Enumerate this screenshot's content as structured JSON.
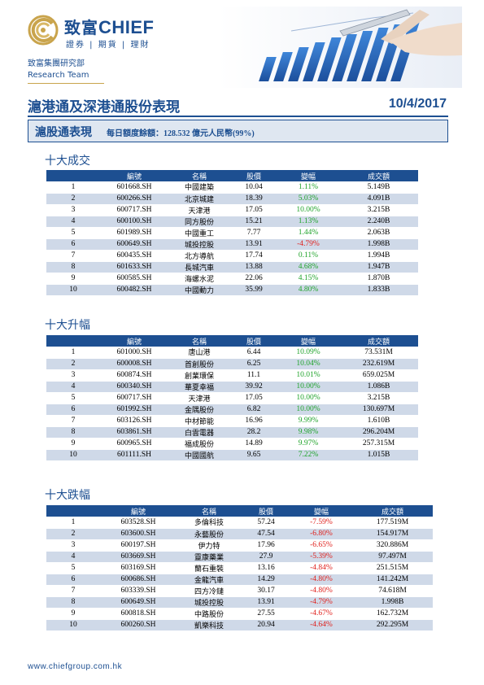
{
  "brand": {
    "cn": "致富",
    "en": "CHIEF",
    "tagline": "證券 | 期貨 | 理財",
    "department_cn": "致富集團研究部",
    "department_en": "Research Team"
  },
  "report": {
    "title": "滬港通及深港通股份表現",
    "date": "10/4/2017"
  },
  "quota": {
    "label": "滬股通表現",
    "text": "每日額度餘額：128.532 億元人民幣(99%)"
  },
  "columns": [
    "",
    "編號",
    "名稱",
    "股價",
    "變幅",
    "成交額"
  ],
  "colors": {
    "brand": "#1d4f91",
    "gold": "#c9a44c",
    "up": "#1fa32a",
    "down": "#e0201c",
    "stripe": "#cfd9e8"
  },
  "sections": [
    {
      "heading": "十大成交",
      "rows": [
        {
          "rank": "1",
          "code": "601668.SH",
          "name": "中國建築",
          "price": "10.04",
          "change": "1.11%",
          "turnover": "5.149B"
        },
        {
          "rank": "2",
          "code": "600266.SH",
          "name": "北京城建",
          "price": "18.39",
          "change": "5.03%",
          "turnover": "4.091B"
        },
        {
          "rank": "3",
          "code": "600717.SH",
          "name": "天津港",
          "price": "17.05",
          "change": "10.00%",
          "turnover": "3.215B"
        },
        {
          "rank": "4",
          "code": "600100.SH",
          "name": "同方股份",
          "price": "15.21",
          "change": "1.13%",
          "turnover": "2.240B"
        },
        {
          "rank": "5",
          "code": "601989.SH",
          "name": "中國重工",
          "price": "7.77",
          "change": "1.44%",
          "turnover": "2.063B"
        },
        {
          "rank": "6",
          "code": "600649.SH",
          "name": "城投控股",
          "price": "13.91",
          "change": "-4.79%",
          "turnover": "1.998B"
        },
        {
          "rank": "7",
          "code": "600435.SH",
          "name": "北方導航",
          "price": "17.74",
          "change": "0.11%",
          "turnover": "1.994B"
        },
        {
          "rank": "8",
          "code": "601633.SH",
          "name": "長城汽車",
          "price": "13.88",
          "change": "4.68%",
          "turnover": "1.947B"
        },
        {
          "rank": "9",
          "code": "600585.SH",
          "name": "海螺水泥",
          "price": "22.06",
          "change": "4.15%",
          "turnover": "1.870B"
        },
        {
          "rank": "10",
          "code": "600482.SH",
          "name": "中國動力",
          "price": "35.99",
          "change": "4.80%",
          "turnover": "1.833B"
        }
      ]
    },
    {
      "heading": "十大升幅",
      "rows": [
        {
          "rank": "1",
          "code": "601000.SH",
          "name": "唐山港",
          "price": "6.44",
          "change": "10.09%",
          "turnover": "73.531M"
        },
        {
          "rank": "2",
          "code": "600008.SH",
          "name": "首創股份",
          "price": "6.25",
          "change": "10.04%",
          "turnover": "232.619M"
        },
        {
          "rank": "3",
          "code": "600874.SH",
          "name": "創業環保",
          "price": "11.1",
          "change": "10.01%",
          "turnover": "659.025M"
        },
        {
          "rank": "4",
          "code": "600340.SH",
          "name": "華夏幸福",
          "price": "39.92",
          "change": "10.00%",
          "turnover": "1.086B"
        },
        {
          "rank": "5",
          "code": "600717.SH",
          "name": "天津港",
          "price": "17.05",
          "change": "10.00%",
          "turnover": "3.215B"
        },
        {
          "rank": "6",
          "code": "601992.SH",
          "name": "金隅股份",
          "price": "6.82",
          "change": "10.00%",
          "turnover": "130.697M"
        },
        {
          "rank": "7",
          "code": "603126.SH",
          "name": "中材節能",
          "price": "16.96",
          "change": "9.99%",
          "turnover": "1.610B"
        },
        {
          "rank": "8",
          "code": "603861.SH",
          "name": "白雲電器",
          "price": "28.2",
          "change": "9.98%",
          "turnover": "296.204M"
        },
        {
          "rank": "9",
          "code": "600965.SH",
          "name": "福成股份",
          "price": "14.89",
          "change": "9.97%",
          "turnover": "257.315M"
        },
        {
          "rank": "10",
          "code": "601111.SH",
          "name": "中國國航",
          "price": "9.65",
          "change": "7.22%",
          "turnover": "1.015B"
        }
      ]
    },
    {
      "heading": "十大跌幅",
      "rows": [
        {
          "rank": "1",
          "code": "603528.SH",
          "name": "多倫科技",
          "price": "57.24",
          "change": "-7.59%",
          "turnover": "177.519M"
        },
        {
          "rank": "2",
          "code": "603600.SH",
          "name": "永藝股份",
          "price": "47.54",
          "change": "-6.80%",
          "turnover": "154.917M"
        },
        {
          "rank": "3",
          "code": "600197.SH",
          "name": "伊力特",
          "price": "17.96",
          "change": "-6.65%",
          "turnover": "320.886M"
        },
        {
          "rank": "4",
          "code": "603669.SH",
          "name": "靈康藥業",
          "price": "27.9",
          "change": "-5.39%",
          "turnover": "97.497M"
        },
        {
          "rank": "5",
          "code": "603169.SH",
          "name": "蘭石重裝",
          "price": "13.16",
          "change": "-4.84%",
          "turnover": "251.515M"
        },
        {
          "rank": "6",
          "code": "600686.SH",
          "name": "金龍汽車",
          "price": "14.29",
          "change": "-4.80%",
          "turnover": "141.242M"
        },
        {
          "rank": "7",
          "code": "603339.SH",
          "name": "四方冷鏈",
          "price": "30.17",
          "change": "-4.80%",
          "turnover": "74.618M"
        },
        {
          "rank": "8",
          "code": "600649.SH",
          "name": "城投控股",
          "price": "13.91",
          "change": "-4.79%",
          "turnover": "1.998B"
        },
        {
          "rank": "9",
          "code": "600818.SH",
          "name": "中路股份",
          "price": "27.55",
          "change": "-4.67%",
          "turnover": "162.732M"
        },
        {
          "rank": "10",
          "code": "600260.SH",
          "name": "凱樂科技",
          "price": "20.94",
          "change": "-4.64%",
          "turnover": "292.295M"
        }
      ]
    }
  ],
  "footer": {
    "url": "www.chiefgroup.com.hk"
  }
}
